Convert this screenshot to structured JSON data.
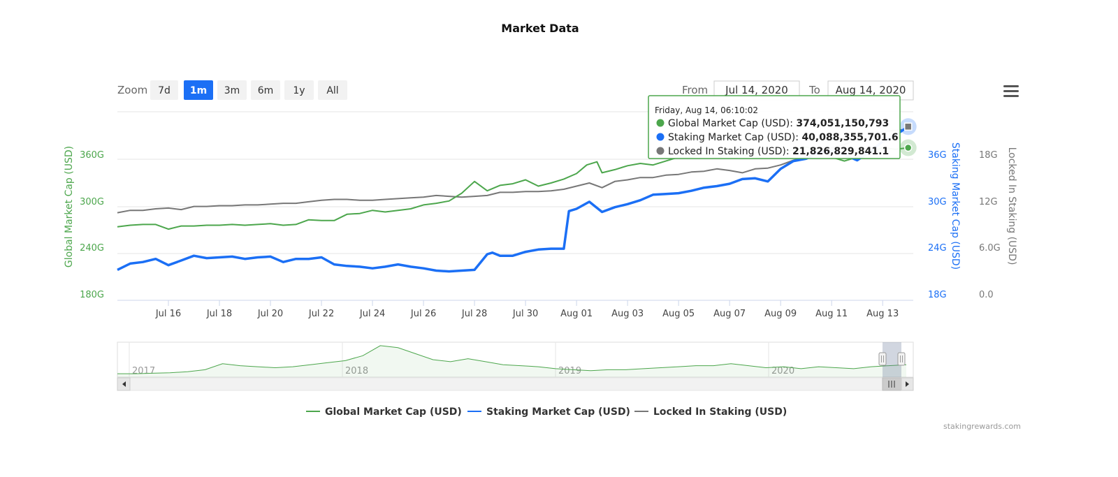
{
  "chart_data": {
    "type": "line",
    "title": "Market Data",
    "zoom": {
      "label": "Zoom",
      "buttons": [
        "7d",
        "1m",
        "3m",
        "6m",
        "1y",
        "All"
      ],
      "selected": "1m"
    },
    "range": {
      "from_label": "From",
      "from": "Jul 14, 2020",
      "to_label": "To",
      "to": "Aug 14, 2020"
    },
    "x_ticks": [
      "Jul 16",
      "Jul 18",
      "Jul 20",
      "Jul 22",
      "Jul 24",
      "Jul 26",
      "Jul 28",
      "Jul 30",
      "Aug 01",
      "Aug 03",
      "Aug 05",
      "Aug 07",
      "Aug 09",
      "Aug 11",
      "Aug 13"
    ],
    "axes": {
      "left": {
        "label": "Global Market Cap (USD)",
        "ticks": [
          "180G",
          "240G",
          "300G",
          "360G"
        ],
        "range": [
          180,
          420
        ],
        "color": "#4ca64c"
      },
      "right1": {
        "label": "Staking Market Cap (USD)",
        "ticks": [
          "18G",
          "24G",
          "30G",
          "36G"
        ],
        "range": [
          18,
          42
        ],
        "color": "#1b6ff5"
      },
      "right2": {
        "label": "Locked In Staking (USD)",
        "ticks": [
          "0.0",
          "6.0G",
          "12G",
          "18G"
        ],
        "range": [
          0,
          24
        ],
        "color": "#777777"
      }
    },
    "series": [
      {
        "name": "Global Market Cap (USD)",
        "axis": "left",
        "color": "#4ca64c",
        "x": [
          14.0,
          14.5,
          15.0,
          15.5,
          16.0,
          16.5,
          17.0,
          17.5,
          18.0,
          18.5,
          19.0,
          19.5,
          20.0,
          20.5,
          21.0,
          21.5,
          22.0,
          22.5,
          23.0,
          23.5,
          24.0,
          24.5,
          25.0,
          25.5,
          26.0,
          26.5,
          27.0,
          27.5,
          28.0,
          28.5,
          29.0,
          29.5,
          30.0,
          30.5,
          31.0,
          31.5,
          32.0,
          32.4,
          32.8,
          33.0,
          33.5,
          34.0,
          34.5,
          35.0,
          35.5,
          36.0,
          36.5,
          37.0,
          37.5,
          38.0,
          38.5,
          39.0,
          39.5,
          40.0,
          40.5,
          41.0,
          41.5,
          42.0,
          42.5,
          43.0,
          43.5,
          44.0,
          44.5,
          45.0
        ],
        "values": [
          273,
          275,
          276,
          276,
          270,
          274,
          274,
          275,
          275,
          276,
          275,
          276,
          277,
          275,
          276,
          282,
          281,
          281,
          289,
          290,
          294,
          292,
          294,
          296,
          301,
          303,
          306,
          316,
          331,
          319,
          326,
          328,
          333,
          325,
          329,
          334,
          341,
          352,
          356,
          342,
          346,
          351,
          354,
          352,
          357,
          362,
          362,
          366,
          361,
          366,
          364,
          367,
          370,
          369,
          371,
          375,
          371,
          362,
          357,
          362,
          368,
          374,
          372,
          374
        ]
      },
      {
        "name": "Staking Market Cap (USD)",
        "axis": "right1",
        "color": "#1b6ff5",
        "x": [
          14.0,
          14.5,
          15.0,
          15.5,
          16.0,
          16.5,
          17.0,
          17.5,
          18.0,
          18.5,
          19.0,
          19.5,
          20.0,
          20.5,
          21.0,
          21.5,
          22.0,
          22.5,
          23.0,
          23.5,
          24.0,
          24.5,
          25.0,
          25.5,
          26.0,
          26.5,
          27.0,
          27.5,
          28.0,
          28.5,
          28.7,
          29.0,
          29.5,
          30.0,
          30.5,
          31.0,
          31.5,
          31.7,
          32.0,
          32.5,
          33.0,
          33.5,
          34.0,
          34.5,
          35.0,
          35.5,
          36.0,
          36.5,
          37.0,
          37.5,
          38.0,
          38.5,
          39.0,
          39.5,
          40.0,
          40.5,
          41.0,
          41.5,
          42.0,
          42.5,
          43.0,
          43.5,
          44.0,
          44.5,
          45.0
        ],
        "values": [
          21.8,
          22.6,
          22.8,
          23.2,
          22.4,
          23.0,
          23.6,
          23.3,
          23.4,
          23.5,
          23.2,
          23.4,
          23.5,
          22.8,
          23.2,
          23.2,
          23.4,
          22.5,
          22.3,
          22.2,
          22.0,
          22.2,
          22.5,
          22.2,
          22.0,
          21.7,
          21.6,
          21.7,
          21.8,
          23.8,
          24.0,
          23.6,
          23.6,
          24.1,
          24.4,
          24.5,
          24.5,
          29.3,
          29.6,
          30.5,
          29.2,
          29.8,
          30.2,
          30.7,
          31.4,
          31.5,
          31.6,
          31.9,
          32.3,
          32.5,
          32.8,
          33.4,
          33.5,
          33.1,
          34.7,
          35.7,
          36.0,
          36.8,
          37.0,
          36.5,
          35.8,
          36.9,
          38.2,
          39.0,
          40.1
        ]
      },
      {
        "name": "Locked In Staking (USD)",
        "axis": "right2",
        "color": "#777777",
        "x": [
          14.0,
          14.5,
          15.0,
          15.5,
          16.0,
          16.5,
          17.0,
          17.5,
          18.0,
          18.5,
          19.0,
          19.5,
          20.0,
          20.5,
          21.0,
          21.5,
          22.0,
          22.5,
          23.0,
          23.5,
          24.0,
          24.5,
          25.0,
          25.5,
          26.0,
          26.5,
          27.0,
          27.5,
          28.0,
          28.5,
          29.0,
          29.5,
          30.0,
          30.5,
          31.0,
          31.5,
          32.0,
          32.5,
          33.0,
          33.5,
          34.0,
          34.5,
          35.0,
          35.5,
          36.0,
          36.5,
          37.0,
          37.5,
          38.0,
          38.5,
          39.0,
          39.5,
          40.0,
          40.5,
          41.0,
          41.5,
          42.0,
          42.5,
          43.0,
          43.5,
          44.0,
          44.5,
          45.0
        ],
        "values": [
          11.1,
          11.4,
          11.4,
          11.6,
          11.7,
          11.5,
          11.9,
          11.9,
          12.0,
          12.0,
          12.1,
          12.1,
          12.2,
          12.3,
          12.3,
          12.5,
          12.7,
          12.8,
          12.8,
          12.7,
          12.7,
          12.8,
          12.9,
          13.0,
          13.1,
          13.3,
          13.2,
          13.1,
          13.2,
          13.3,
          13.7,
          13.7,
          13.8,
          13.8,
          13.9,
          14.1,
          14.5,
          14.9,
          14.3,
          15.1,
          15.3,
          15.6,
          15.6,
          15.9,
          16.0,
          16.3,
          16.4,
          16.7,
          16.5,
          16.2,
          16.7,
          16.8,
          17.2,
          17.8,
          18.3,
          18.7,
          19.4,
          19.8,
          20.5,
          20.8,
          21.5,
          21.6,
          21.8
        ]
      }
    ],
    "tooltip": {
      "header": "Friday, Aug 14, 06:10:02",
      "rows": [
        {
          "label": "Global Market Cap (USD)",
          "value": "374,051,150,793",
          "color": "#4ca64c"
        },
        {
          "label": "Staking Market Cap (USD)",
          "value": "40,088,355,701.6",
          "color": "#1b6ff5"
        },
        {
          "label": "Locked In Staking (USD)",
          "value": "21,826,829,841.1",
          "color": "#777777"
        }
      ]
    },
    "navigator": {
      "year_labels": [
        "2017",
        "2018",
        "2019",
        "2020"
      ],
      "values": [
        2,
        2,
        2.5,
        3,
        4,
        6,
        12,
        10,
        9,
        8,
        9,
        11,
        13,
        15,
        20,
        30,
        28,
        22,
        16,
        14,
        17,
        14,
        11,
        10,
        9,
        7,
        6,
        5,
        6,
        6,
        7,
        8,
        9,
        10,
        10,
        12,
        10,
        8,
        9,
        7,
        9,
        8,
        7,
        9,
        10,
        11
      ]
    },
    "legend": [
      "Global Market Cap (USD)",
      "Staking Market Cap (USD)",
      "Locked In Staking (USD)"
    ],
    "legend_position": "bottom",
    "credit": "stakingrewards.com"
  }
}
